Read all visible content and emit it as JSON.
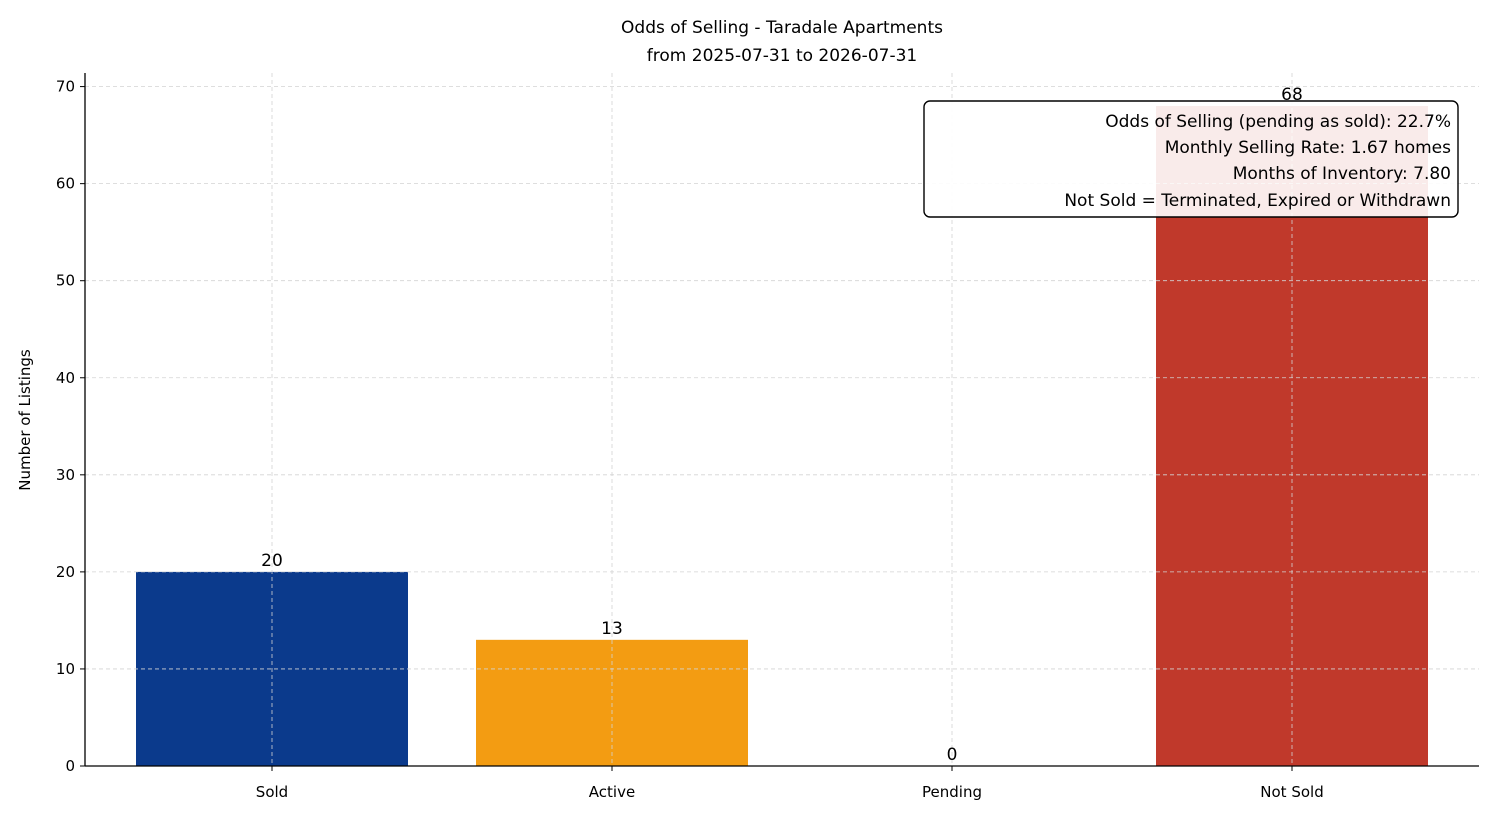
{
  "chart_data": {
    "type": "bar",
    "title": "Odds of Selling - Taradale Apartments",
    "subtitle": "from 2025-07-31 to 2026-07-31",
    "xlabel": "",
    "ylabel": "Number of Listings",
    "categories": [
      "Sold",
      "Active",
      "Pending",
      "Not Sold"
    ],
    "values": [
      20,
      13,
      0,
      68
    ],
    "colors": [
      "#0b3a8c",
      "#f39c12",
      "#2e8b57",
      "#c0392b"
    ],
    "data_labels": [
      "20",
      "13",
      "0",
      "68"
    ],
    "ylim": [
      0,
      71.4
    ],
    "yticks": [
      0,
      10,
      20,
      30,
      40,
      50,
      60,
      70
    ],
    "ytick_labels": [
      "0",
      "10",
      "20",
      "30",
      "40",
      "50",
      "60",
      "70"
    ],
    "grid": true,
    "annotation": {
      "lines": [
        "Odds of Selling (pending as sold): 22.7%",
        "Monthly Selling Rate: 1.67 homes",
        "Months of Inventory: 7.80",
        "Not Sold = Terminated, Expired or Withdrawn"
      ],
      "placement": "top-right"
    }
  }
}
